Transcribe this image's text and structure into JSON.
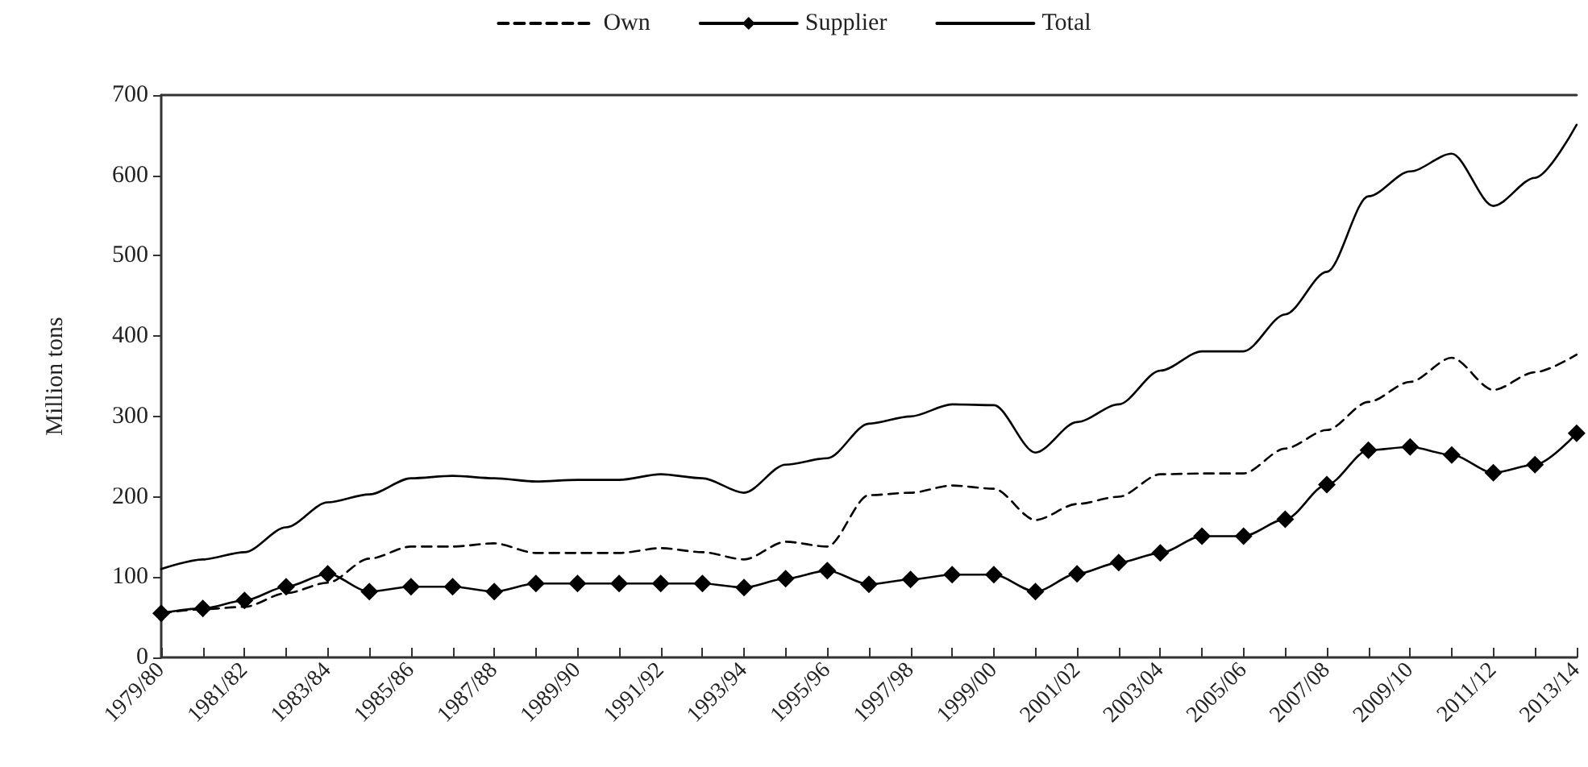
{
  "chart_data": {
    "type": "line",
    "ylabel": "Million tons",
    "categories": [
      "1979/80",
      null,
      "1981/82",
      null,
      "1983/84",
      null,
      "1985/86",
      null,
      "1987/88",
      null,
      "1989/90",
      null,
      "1991/92",
      null,
      "1993/94",
      null,
      "1995/96",
      null,
      "1997/98",
      null,
      "1999/00",
      null,
      "2001/02",
      null,
      "2003/04",
      null,
      "2005/06",
      null,
      "2007/08",
      null,
      "2009/10",
      null,
      "2011/12",
      null,
      "2013/14"
    ],
    "series": [
      {
        "name": "Own",
        "color": "#000000",
        "line_style": "dashed",
        "marker": "none",
        "values": [
          55,
          60,
          63,
          80,
          93,
          123,
          138,
          138,
          142,
          130,
          130,
          130,
          136,
          131,
          122,
          144,
          138,
          202,
          205,
          214,
          210,
          171,
          191,
          200,
          228,
          229,
          229,
          260,
          283,
          318,
          343,
          373,
          333,
          355,
          377
        ]
      },
      {
        "name": "Supplier",
        "color": "#000000",
        "line_style": "solid",
        "marker": "diamond",
        "values": [
          55,
          61,
          71,
          88,
          104,
          82,
          88,
          88,
          82,
          92,
          92,
          92,
          92,
          92,
          87,
          98,
          108,
          91,
          97,
          103,
          103,
          82,
          104,
          118,
          130,
          151,
          151,
          172,
          215,
          258,
          262,
          252,
          230,
          240,
          279
        ]
      },
      {
        "name": "Total",
        "color": "#000000",
        "line_style": "solid",
        "marker": "none",
        "values": [
          110,
          122,
          131,
          162,
          193,
          203,
          223,
          226,
          223,
          219,
          221,
          221,
          228,
          223,
          205,
          240,
          248,
          291,
          300,
          315,
          314,
          255,
          293,
          315,
          357,
          381,
          381,
          427,
          480,
          574,
          605,
          627,
          562,
          597,
          663
        ]
      }
    ],
    "ylim": [
      0,
      700
    ],
    "yticks": [
      0,
      100,
      200,
      300,
      400,
      500,
      600,
      700
    ],
    "grid": false,
    "legend": "top"
  }
}
